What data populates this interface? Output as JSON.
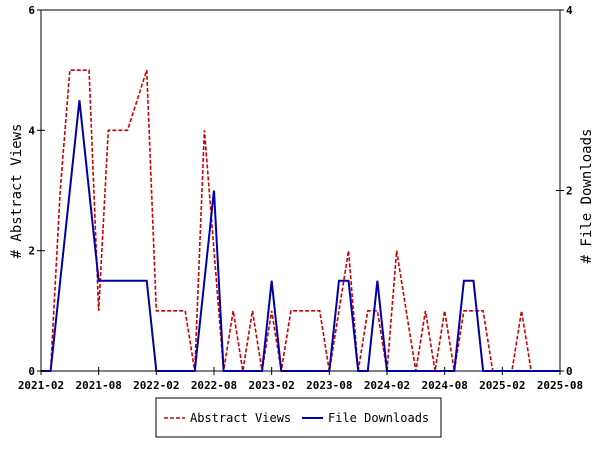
{
  "chart_data": {
    "type": "line",
    "title": "",
    "x_ticks": [
      "2021-02",
      "2021-08",
      "2022-02",
      "2022-08",
      "2023-02",
      "2023-08",
      "2024-02",
      "2024-08",
      "2025-02",
      "2025-08"
    ],
    "x_range": [
      "2021-02",
      "2025-08"
    ],
    "y_left": {
      "label": "# Abstract Views",
      "range": [
        0,
        6
      ],
      "ticks": [
        "0",
        "2",
        "4",
        "6"
      ]
    },
    "y_right": {
      "label": "# File Downloads",
      "range": [
        0,
        4
      ],
      "ticks": [
        "0",
        "2",
        "4"
      ]
    },
    "grid": false,
    "legend_position": "bottom",
    "series": [
      {
        "name": "Abstract Views",
        "axis": "left",
        "color": "#cc0000",
        "style": "dashed",
        "points": [
          [
            "2021-02",
            0
          ],
          [
            "2021-03",
            0
          ],
          [
            "2021-04",
            3
          ],
          [
            "2021-05",
            5
          ],
          [
            "2021-06",
            5
          ],
          [
            "2021-07",
            5
          ],
          [
            "2021-08",
            1
          ],
          [
            "2021-09",
            4
          ],
          [
            "2021-10",
            4
          ],
          [
            "2021-11",
            4
          ],
          [
            "2021-12",
            4.5
          ],
          [
            "2022-01",
            5
          ],
          [
            "2022-02",
            1
          ],
          [
            "2022-03",
            1
          ],
          [
            "2022-04",
            1
          ],
          [
            "2022-05",
            1
          ],
          [
            "2022-06",
            0
          ],
          [
            "2022-07",
            4
          ],
          [
            "2022-08",
            2
          ],
          [
            "2022-09",
            0
          ],
          [
            "2022-10",
            1
          ],
          [
            "2022-11",
            0
          ],
          [
            "2022-12",
            1
          ],
          [
            "2023-01",
            0
          ],
          [
            "2023-02",
            1
          ],
          [
            "2023-03",
            0
          ],
          [
            "2023-04",
            1
          ],
          [
            "2023-05",
            1
          ],
          [
            "2023-06",
            1
          ],
          [
            "2023-07",
            1
          ],
          [
            "2023-08",
            0
          ],
          [
            "2023-09",
            1
          ],
          [
            "2023-10",
            2
          ],
          [
            "2023-11",
            0
          ],
          [
            "2023-12",
            1
          ],
          [
            "2024-01",
            1
          ],
          [
            "2024-02",
            0
          ],
          [
            "2024-03",
            2
          ],
          [
            "2024-04",
            1
          ],
          [
            "2024-05",
            0
          ],
          [
            "2024-06",
            1
          ],
          [
            "2024-07",
            0
          ],
          [
            "2024-08",
            1
          ],
          [
            "2024-09",
            0
          ],
          [
            "2024-10",
            1
          ],
          [
            "2024-11",
            1
          ],
          [
            "2024-12",
            1
          ],
          [
            "2025-01",
            0
          ],
          [
            "2025-02",
            0
          ],
          [
            "2025-03",
            0
          ],
          [
            "2025-04",
            1
          ],
          [
            "2025-05",
            0
          ],
          [
            "2025-06",
            0
          ],
          [
            "2025-07",
            0
          ],
          [
            "2025-08",
            0
          ]
        ]
      },
      {
        "name": "File Downloads",
        "axis": "right",
        "color": "#0000aa",
        "style": "solid",
        "points": [
          [
            "2021-02",
            0
          ],
          [
            "2021-03",
            0
          ],
          [
            "2021-04",
            1
          ],
          [
            "2021-05",
            2
          ],
          [
            "2021-06",
            3
          ],
          [
            "2021-07",
            2
          ],
          [
            "2021-08",
            1
          ],
          [
            "2021-09",
            1
          ],
          [
            "2021-10",
            1
          ],
          [
            "2021-11",
            1
          ],
          [
            "2021-12",
            1
          ],
          [
            "2022-01",
            1
          ],
          [
            "2022-02",
            0
          ],
          [
            "2022-03",
            0
          ],
          [
            "2022-04",
            0
          ],
          [
            "2022-05",
            0
          ],
          [
            "2022-06",
            0
          ],
          [
            "2022-07",
            1
          ],
          [
            "2022-08",
            2
          ],
          [
            "2022-09",
            0
          ],
          [
            "2022-10",
            0
          ],
          [
            "2022-11",
            0
          ],
          [
            "2022-12",
            0
          ],
          [
            "2023-01",
            0
          ],
          [
            "2023-02",
            1
          ],
          [
            "2023-03",
            0
          ],
          [
            "2023-04",
            0
          ],
          [
            "2023-05",
            0
          ],
          [
            "2023-06",
            0
          ],
          [
            "2023-07",
            0
          ],
          [
            "2023-08",
            0
          ],
          [
            "2023-09",
            1
          ],
          [
            "2023-10",
            1
          ],
          [
            "2023-11",
            0
          ],
          [
            "2023-12",
            0
          ],
          [
            "2024-01",
            1
          ],
          [
            "2024-02",
            0
          ],
          [
            "2024-03",
            0
          ],
          [
            "2024-04",
            0
          ],
          [
            "2024-05",
            0
          ],
          [
            "2024-06",
            0
          ],
          [
            "2024-07",
            0
          ],
          [
            "2024-08",
            0
          ],
          [
            "2024-09",
            0
          ],
          [
            "2024-10",
            1
          ],
          [
            "2024-11",
            1
          ],
          [
            "2024-12",
            0
          ],
          [
            "2025-01",
            0
          ],
          [
            "2025-02",
            0
          ],
          [
            "2025-03",
            0
          ],
          [
            "2025-04",
            0
          ],
          [
            "2025-05",
            0
          ],
          [
            "2025-06",
            0
          ],
          [
            "2025-07",
            0
          ],
          [
            "2025-08",
            0
          ]
        ]
      }
    ]
  }
}
